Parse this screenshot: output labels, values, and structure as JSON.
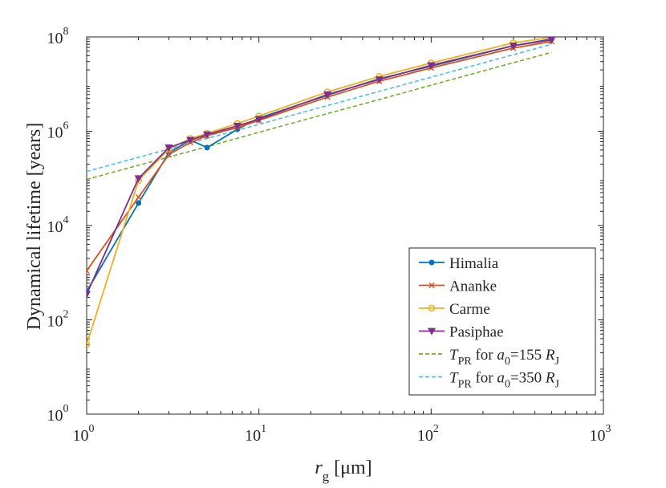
{
  "chart_data": {
    "type": "line",
    "xlabel": {
      "main": "r",
      "sub": "g",
      "unit": " [μm]"
    },
    "ylabel": "Dynamical lifetime [years]",
    "xscale": "log",
    "yscale": "log",
    "xlim": [
      1,
      1000
    ],
    "ylim": [
      1,
      100000000
    ],
    "x_ticks": [
      {
        "value": 1,
        "base": "10",
        "exp": "0"
      },
      {
        "value": 10,
        "base": "10",
        "exp": "1"
      },
      {
        "value": 100,
        "base": "10",
        "exp": "2"
      },
      {
        "value": 1000,
        "base": "10",
        "exp": "3"
      }
    ],
    "y_ticks": [
      {
        "value": 1,
        "base": "10",
        "exp": "0"
      },
      {
        "value": 100,
        "base": "10",
        "exp": "2"
      },
      {
        "value": 10000,
        "base": "10",
        "exp": "4"
      },
      {
        "value": 1000000,
        "base": "10",
        "exp": "6"
      },
      {
        "value": 100000000,
        "base": "10",
        "exp": "8"
      }
    ],
    "grid": false,
    "legend_position": "bottom-right",
    "series": [
      {
        "name": "Himalia",
        "color": "#0072BD",
        "marker": "dot",
        "dash": "solid",
        "x": [
          1,
          2,
          3,
          4,
          5,
          7.5,
          10,
          25,
          50,
          100,
          300,
          500
        ],
        "y": [
          400,
          30000,
          350000,
          650000,
          450000,
          1100000,
          1900000,
          5800000,
          13000000,
          24000000,
          65000000,
          90000000
        ]
      },
      {
        "name": "Ananke",
        "color": "#D95319",
        "marker": "x",
        "dash": "solid",
        "x": [
          1,
          2,
          3,
          4,
          5,
          7.5,
          10,
          25,
          50,
          100,
          300,
          500
        ],
        "y": [
          1100,
          40000,
          320000,
          580000,
          800000,
          1200000,
          1700000,
          5300000,
          11500000,
          22000000,
          58000000,
          80000000
        ]
      },
      {
        "name": "Carme",
        "color": "#EDB120",
        "marker": "circle",
        "dash": "solid",
        "x": [
          1,
          2,
          3,
          4,
          5,
          7.5,
          10,
          25,
          50,
          100,
          300,
          500
        ],
        "y": [
          30,
          90000,
          420000,
          700000,
          900000,
          1450000,
          2100000,
          6800000,
          14500000,
          28000000,
          75000000,
          98000000
        ]
      },
      {
        "name": "Pasiphae",
        "color": "#7E2F8E",
        "marker": "triangle-down",
        "dash": "solid",
        "x": [
          1,
          2,
          3,
          4,
          5,
          7.5,
          10,
          25,
          50,
          100,
          300,
          500
        ],
        "y": [
          350,
          100000,
          450000,
          650000,
          850000,
          1300000,
          1800000,
          6000000,
          12500000,
          25000000,
          65000000,
          87000000
        ]
      },
      {
        "name": {
          "t": "T",
          "sub": "PR",
          "mid": " for ",
          "a": "a",
          "asub": "0",
          "eq": "=155 ",
          "r": "R",
          "rsub": "J"
        },
        "color": "#77AC30",
        "marker": "none",
        "dash": "dashed",
        "x": [
          1,
          2,
          5,
          10,
          20,
          50,
          100,
          200,
          500
        ],
        "y": [
          95000,
          190000,
          470000,
          950000,
          1900000,
          4700000,
          9500000,
          19000000,
          47000000
        ]
      },
      {
        "name": {
          "t": "T",
          "sub": "PR",
          "mid": " for ",
          "a": "a",
          "asub": "0",
          "eq": "=350 ",
          "r": "R",
          "rsub": "J"
        },
        "color": "#4DBEEE",
        "marker": "none",
        "dash": "dashed",
        "x": [
          1,
          2,
          5,
          10,
          20,
          50,
          100,
          200,
          500
        ],
        "y": [
          140000,
          280000,
          700000,
          1400000,
          2800000,
          7000000,
          14000000,
          28000000,
          70000000
        ]
      }
    ]
  }
}
